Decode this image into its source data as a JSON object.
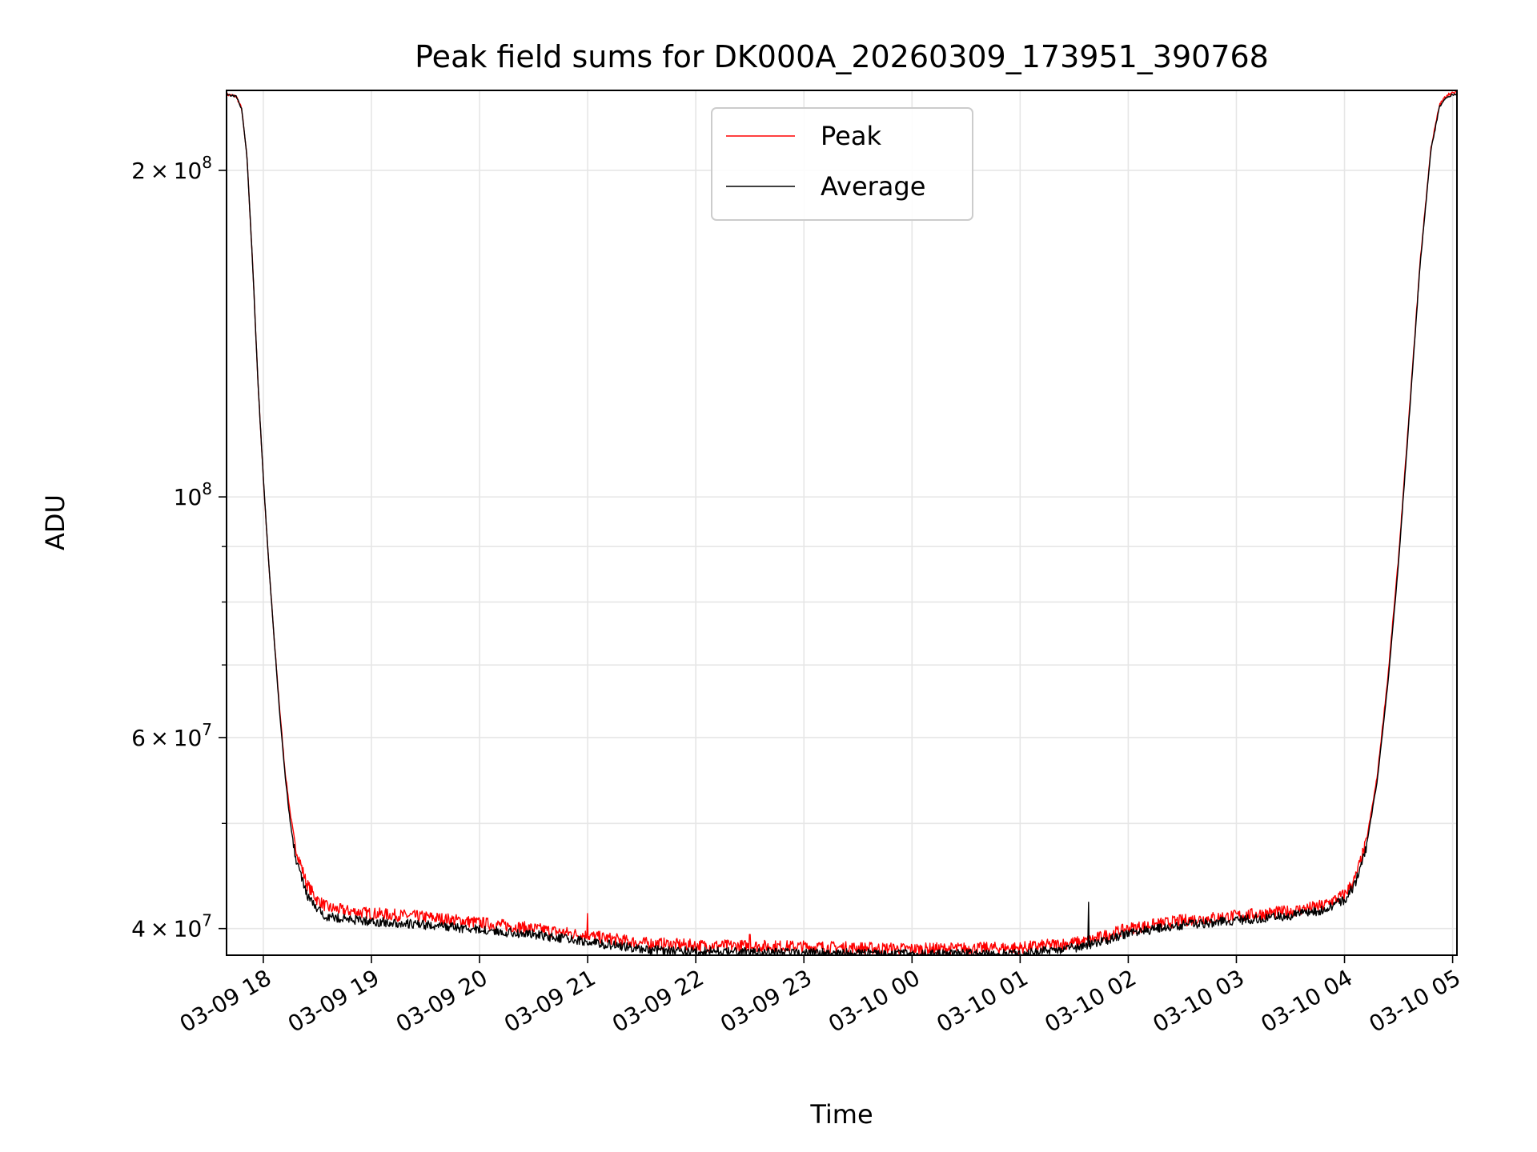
{
  "chart_data": {
    "type": "line",
    "title": "Peak field sums for DK000A_20260309_173951_390768",
    "xlabel": "Time",
    "ylabel": "ADU",
    "yscale": "log",
    "ylim": [
      37800000,
      237000000
    ],
    "xlim_hours": [
      17.66,
      29.04
    ],
    "grid": true,
    "legend_position": "upper center",
    "x_ticks": [
      {
        "hour": 18,
        "label": "03-09 18"
      },
      {
        "hour": 19,
        "label": "03-09 19"
      },
      {
        "hour": 20,
        "label": "03-09 20"
      },
      {
        "hour": 21,
        "label": "03-09 21"
      },
      {
        "hour": 22,
        "label": "03-09 22"
      },
      {
        "hour": 23,
        "label": "03-09 23"
      },
      {
        "hour": 24,
        "label": "03-10 00"
      },
      {
        "hour": 25,
        "label": "03-10 01"
      },
      {
        "hour": 26,
        "label": "03-10 02"
      },
      {
        "hour": 27,
        "label": "03-10 03"
      },
      {
        "hour": 28,
        "label": "03-10 04"
      },
      {
        "hour": 29,
        "label": "03-10 05"
      }
    ],
    "y_ticks": [
      {
        "value": 40000000,
        "mantissa": "4",
        "exponent": "7"
      },
      {
        "value": 60000000,
        "mantissa": "6",
        "exponent": "7"
      },
      {
        "value": 100000000,
        "mantissa": "",
        "exponent": "8"
      },
      {
        "value": 200000000,
        "mantissa": "2",
        "exponent": "8"
      }
    ],
    "y_minor_ticks": [
      50000000,
      70000000,
      80000000,
      90000000
    ],
    "times_symbol": "×",
    "base_label": "10",
    "series": [
      {
        "name": "Peak",
        "color": "#ff0000",
        "noise_fraction": 0.013,
        "points": [
          [
            17.66,
            235000000
          ],
          [
            17.75,
            234000000
          ],
          [
            17.8,
            228000000
          ],
          [
            17.85,
            205000000
          ],
          [
            17.9,
            165000000
          ],
          [
            17.95,
            128000000
          ],
          [
            18.0,
            104000000
          ],
          [
            18.05,
            87000000
          ],
          [
            18.1,
            74000000
          ],
          [
            18.15,
            64000000
          ],
          [
            18.2,
            56000000
          ],
          [
            18.25,
            51000000
          ],
          [
            18.3,
            47500000
          ],
          [
            18.4,
            44000000
          ],
          [
            18.5,
            42500000
          ],
          [
            18.6,
            41800000
          ],
          [
            18.8,
            41500000
          ],
          [
            19.0,
            41300000
          ],
          [
            19.5,
            41000000
          ],
          [
            20.0,
            40500000
          ],
          [
            20.5,
            40000000
          ],
          [
            21.0,
            39400000
          ],
          [
            21.5,
            38800000
          ],
          [
            22.0,
            38600000
          ],
          [
            23.0,
            38500000
          ],
          [
            24.0,
            38300000
          ],
          [
            25.0,
            38400000
          ],
          [
            25.6,
            38900000
          ],
          [
            26.0,
            40000000
          ],
          [
            26.5,
            40700000
          ],
          [
            27.0,
            41100000
          ],
          [
            27.5,
            41500000
          ],
          [
            27.8,
            42000000
          ],
          [
            28.0,
            43000000
          ],
          [
            28.1,
            44500000
          ],
          [
            28.2,
            48000000
          ],
          [
            28.3,
            55000000
          ],
          [
            28.4,
            68000000
          ],
          [
            28.5,
            88000000
          ],
          [
            28.6,
            120000000
          ],
          [
            28.7,
            165000000
          ],
          [
            28.8,
            210000000
          ],
          [
            28.88,
            230000000
          ],
          [
            28.95,
            235000000
          ],
          [
            29.04,
            236000000
          ]
        ],
        "spikes": [
          [
            21.0,
            41300000
          ],
          [
            22.5,
            39500000
          ]
        ]
      },
      {
        "name": "Average",
        "color": "#000000",
        "noise_fraction": 0.01,
        "points": [
          [
            17.66,
            235000000
          ],
          [
            17.75,
            234000000
          ],
          [
            17.8,
            228000000
          ],
          [
            17.85,
            205000000
          ],
          [
            17.9,
            165000000
          ],
          [
            17.95,
            128000000
          ],
          [
            18.0,
            104000000
          ],
          [
            18.05,
            87000000
          ],
          [
            18.1,
            74000000
          ],
          [
            18.15,
            63500000
          ],
          [
            18.2,
            55500000
          ],
          [
            18.25,
            50000000
          ],
          [
            18.3,
            46500000
          ],
          [
            18.4,
            43000000
          ],
          [
            18.5,
            41600000
          ],
          [
            18.6,
            41000000
          ],
          [
            18.8,
            40800000
          ],
          [
            19.0,
            40600000
          ],
          [
            19.5,
            40300000
          ],
          [
            20.0,
            39900000
          ],
          [
            20.5,
            39500000
          ],
          [
            21.0,
            38900000
          ],
          [
            21.5,
            38300000
          ],
          [
            22.0,
            38100000
          ],
          [
            23.0,
            38000000
          ],
          [
            24.0,
            37900000
          ],
          [
            25.0,
            37900000
          ],
          [
            25.6,
            38500000
          ],
          [
            26.0,
            39600000
          ],
          [
            26.5,
            40300000
          ],
          [
            27.0,
            40700000
          ],
          [
            27.5,
            41100000
          ],
          [
            27.8,
            41600000
          ],
          [
            28.0,
            42500000
          ],
          [
            28.1,
            44000000
          ],
          [
            28.2,
            47500000
          ],
          [
            28.3,
            54500000
          ],
          [
            28.4,
            67000000
          ],
          [
            28.5,
            87000000
          ],
          [
            28.6,
            119000000
          ],
          [
            28.7,
            164000000
          ],
          [
            28.8,
            209000000
          ],
          [
            28.88,
            229000000
          ],
          [
            28.95,
            234000000
          ],
          [
            29.04,
            235500000
          ]
        ],
        "spikes": [
          [
            25.63,
            42300000
          ]
        ]
      }
    ]
  }
}
